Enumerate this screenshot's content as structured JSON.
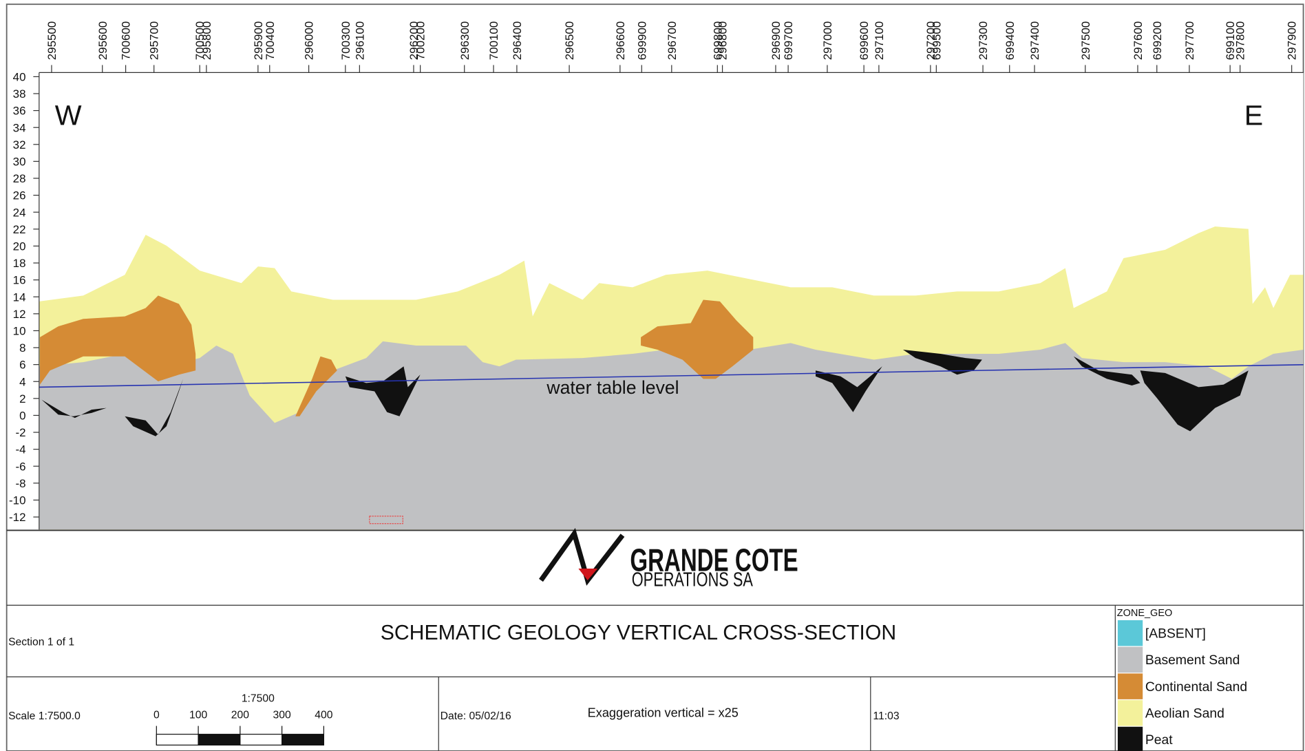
{
  "top_labels": [
    "295500",
    "295600",
    "700600",
    "295700",
    "700500",
    "295800",
    "295900",
    "700400",
    "296000",
    "700300",
    "296100",
    "296200",
    "700200",
    "296300",
    "700100",
    "296400",
    "296500",
    "296600",
    "699900",
    "296700",
    "699800",
    "296800",
    "296900",
    "699700",
    "297000",
    "699600",
    "297100",
    "297200",
    "699500",
    "297300",
    "699400",
    "297400",
    "297500",
    "297600",
    "699200",
    "297700",
    "699100",
    "297800",
    "297900"
  ],
  "y_axis": {
    "ticks": [
      40,
      38,
      36,
      34,
      32,
      30,
      28,
      26,
      24,
      22,
      20,
      18,
      16,
      14,
      12,
      10,
      8,
      6,
      4,
      2,
      0,
      -2,
      -4,
      -6,
      -8,
      -10,
      -12
    ]
  },
  "annotations": {
    "west": "W",
    "east": "E",
    "water_table": "water table level"
  },
  "logo": {
    "name": "GRANDE COTE",
    "subtitle": "OPERATIONS SA"
  },
  "title_block": {
    "section": "Section 1 of 1",
    "title": "SCHEMATIC GEOLOGY VERTICAL CROSS-SECTION",
    "scale": "Scale 1:7500.0",
    "scale_bar": {
      "ratio": "1:7500",
      "ticks": [
        0,
        100,
        200,
        300,
        400
      ]
    },
    "date": "Date: 05/02/16",
    "exaggeration": "Exaggeration vertical = x25",
    "time": "11:03"
  },
  "legend": {
    "title": "ZONE_GEO",
    "items": [
      {
        "label": "[ABSENT]",
        "color": "#5bc8d8"
      },
      {
        "label": "Basement Sand",
        "color": "#c0c1c3"
      },
      {
        "label": "Continental Sand",
        "color": "#d58b35"
      },
      {
        "label": "Aeolian Sand",
        "color": "#f3f19b"
      },
      {
        "label": "Peat",
        "color": "#111111"
      }
    ]
  }
}
